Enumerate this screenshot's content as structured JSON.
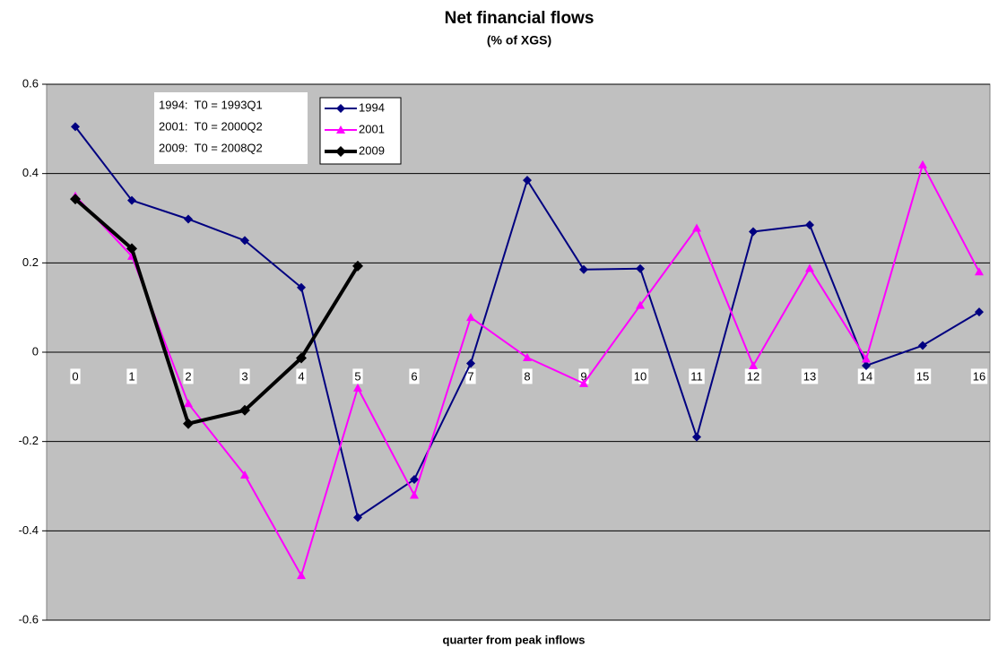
{
  "chart_data": {
    "type": "line",
    "title": "Net financial flows",
    "subtitle": "(% of XGS)",
    "x_label": "quarter from peak inflows",
    "categories": [
      "0",
      "1",
      "2",
      "3",
      "4",
      "5",
      "6",
      "7",
      "8",
      "9",
      "10",
      "11",
      "12",
      "13",
      "14",
      "15",
      "16"
    ],
    "series": [
      {
        "name": "1994",
        "color": "#000080",
        "marker": "diamond",
        "values": [
          0.505,
          0.34,
          0.298,
          0.25,
          0.145,
          -0.37,
          -0.285,
          -0.025,
          0.385,
          0.185,
          0.187,
          -0.19,
          0.27,
          0.285,
          -0.03,
          0.015,
          0.09
        ]
      },
      {
        "name": "2001",
        "color": "#ff00ff",
        "marker": "triangle",
        "values": [
          0.35,
          0.215,
          -0.115,
          -0.275,
          -0.5,
          -0.08,
          -0.32,
          0.078,
          -0.012,
          -0.07,
          0.105,
          0.278,
          -0.03,
          0.188,
          -0.015,
          0.42,
          0.18
        ]
      },
      {
        "name": "2009",
        "color": "#000000",
        "marker": "diamond",
        "values": [
          0.343,
          0.232,
          -0.16,
          -0.13,
          -0.013,
          0.193,
          null,
          null,
          null,
          null,
          null,
          null,
          null,
          null,
          null,
          null,
          null
        ]
      }
    ],
    "annotations": [
      "1994:  T0 = 1993Q1",
      "2001:  T0 = 2000Q2",
      "2009:  T0 = 2008Q2"
    ],
    "ylim": [
      -0.6,
      0.6
    ],
    "yticks": [
      -0.6,
      -0.4,
      -0.2,
      0,
      0.2,
      0.4,
      0.6
    ],
    "grid": true,
    "plot_background": "#c0c0c0"
  }
}
